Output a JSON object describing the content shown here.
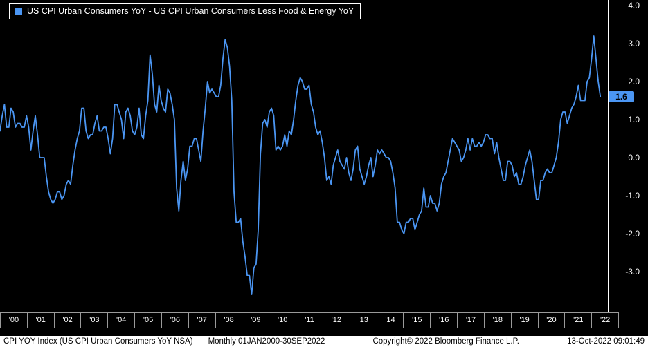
{
  "legend": {
    "label": "US CPI Urban Consumers YoY - US CPI Urban Consumers Less Food & Energy YoY"
  },
  "colors": {
    "line": "#4B96F3",
    "badge_bg": "#4B96F3",
    "badge_text": "#000000",
    "axis_text": "#FFFFFF",
    "background": "#000000",
    "footer_bg": "#FFFFFF"
  },
  "y_axis": {
    "tick_labels": [
      "4.0",
      "3.0",
      "2.0",
      "1.0",
      "0.0",
      "-1.0",
      "-2.0",
      "-3.0"
    ],
    "last_value_label": "1.6"
  },
  "x_axis": {
    "labels": [
      "'00",
      "'01",
      "'02",
      "'03",
      "'04",
      "'05",
      "'06",
      "'07",
      "'08",
      "'09",
      "'10",
      "'11",
      "'12",
      "'13",
      "'14",
      "'15",
      "'16",
      "'17",
      "'18",
      "'19",
      "'20",
      "'21",
      "'22"
    ]
  },
  "footer": {
    "index_name": "CPI YOY Index (US CPI Urban Consumers YoY NSA)",
    "periodicity": "Monthly 01JAN2000-30SEP2022",
    "copyright": "Copyright© 2022 Bloomberg Finance L.P.",
    "timestamp": "13-Oct-2022 09:01:49"
  },
  "chart_data": {
    "type": "line",
    "title": "US CPI Urban Consumers YoY - US CPI Urban Consumers Less Food & Energy YoY",
    "frequency": "monthly",
    "x_start": "2000-01",
    "x_end": "2022-09",
    "ylim": [
      -4.0,
      4.0
    ],
    "y_ticks": [
      4.0,
      3.0,
      2.0,
      1.0,
      0.0,
      -1.0,
      -2.0,
      -3.0
    ],
    "last_value": 1.6,
    "legend_position": "top-left",
    "grid": false,
    "values": [
      0.7,
      1.1,
      1.4,
      0.8,
      0.8,
      1.3,
      1.2,
      0.8,
      0.9,
      0.9,
      0.8,
      0.8,
      1.1,
      0.8,
      0.2,
      0.7,
      1.1,
      0.6,
      0.0,
      0.0,
      0.0,
      -0.5,
      -0.9,
      -1.1,
      -1.2,
      -1.1,
      -0.9,
      -0.9,
      -1.1,
      -1.0,
      -0.7,
      -0.6,
      -0.7,
      -0.2,
      0.2,
      0.5,
      0.7,
      1.3,
      1.3,
      0.7,
      0.5,
      0.6,
      0.6,
      0.9,
      1.1,
      0.7,
      0.7,
      0.8,
      0.8,
      0.5,
      0.1,
      0.5,
      1.4,
      1.4,
      1.2,
      1.0,
      0.5,
      1.2,
      1.3,
      1.1,
      0.7,
      0.6,
      0.8,
      1.3,
      0.6,
      0.5,
      1.1,
      1.5,
      2.7,
      2.2,
      1.4,
      1.2,
      1.9,
      1.5,
      1.3,
      1.2,
      1.8,
      1.7,
      1.4,
      1.0,
      -0.8,
      -1.4,
      -0.6,
      -0.1,
      -0.6,
      -0.3,
      0.3,
      0.3,
      0.5,
      0.5,
      0.2,
      -0.1,
      0.7,
      1.3,
      2.0,
      1.7,
      1.8,
      1.7,
      1.6,
      1.6,
      1.9,
      2.6,
      3.1,
      2.9,
      2.4,
      1.5,
      -0.9,
      -1.7,
      -1.7,
      -1.6,
      -2.2,
      -2.6,
      -3.1,
      -3.1,
      -3.6,
      -2.9,
      -2.8,
      -1.9,
      0.1,
      0.9,
      1.0,
      0.8,
      1.2,
      1.3,
      1.1,
      0.2,
      0.3,
      0.2,
      0.3,
      0.6,
      0.3,
      0.7,
      0.6,
      1.0,
      1.5,
      1.9,
      2.1,
      2.0,
      1.8,
      1.8,
      1.9,
      1.4,
      1.2,
      0.8,
      0.6,
      0.7,
      0.4,
      0.0,
      -0.6,
      -0.5,
      -0.7,
      -0.2,
      0.0,
      0.2,
      -0.1,
      -0.2,
      -0.3,
      0.0,
      -0.4,
      -0.6,
      -0.3,
      0.2,
      0.3,
      -0.3,
      -0.5,
      -0.7,
      -0.5,
      -0.2,
      0.0,
      -0.5,
      -0.2,
      0.2,
      0.1,
      0.2,
      0.1,
      0.0,
      0.0,
      -0.1,
      -0.4,
      -0.8,
      -1.7,
      -1.7,
      -1.9,
      -2.0,
      -1.7,
      -1.7,
      -1.6,
      -1.6,
      -1.9,
      -1.7,
      -1.5,
      -1.4,
      -0.8,
      -1.3,
      -1.3,
      -1.0,
      -1.2,
      -1.2,
      -1.4,
      -1.2,
      -0.7,
      -0.5,
      -0.4,
      -0.1,
      0.2,
      0.5,
      0.4,
      0.3,
      0.2,
      -0.1,
      0.0,
      0.2,
      0.5,
      0.2,
      0.5,
      0.3,
      0.3,
      0.4,
      0.3,
      0.4,
      0.6,
      0.6,
      0.5,
      0.5,
      0.1,
      0.4,
      0.0,
      -0.3,
      -0.6,
      -0.6,
      -0.1,
      -0.1,
      -0.2,
      -0.5,
      -0.4,
      -0.7,
      -0.7,
      -0.5,
      -0.2,
      0.0,
      0.2,
      -0.1,
      -0.6,
      -1.1,
      -1.1,
      -0.6,
      -0.6,
      -0.4,
      -0.3,
      -0.4,
      -0.4,
      -0.2,
      0.0,
      0.4,
      1.0,
      1.2,
      1.2,
      0.9,
      1.1,
      1.3,
      1.4,
      1.6,
      1.9,
      1.5,
      1.5,
      1.5,
      2.0,
      2.1,
      2.6,
      3.2,
      2.6,
      2.0,
      1.6
    ]
  }
}
